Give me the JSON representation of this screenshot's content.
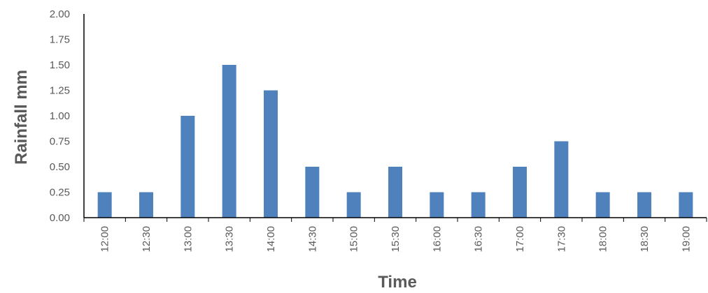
{
  "chart_data": {
    "type": "bar",
    "title": "",
    "xlabel": "Time",
    "ylabel": "Rainfall mm",
    "categories": [
      "12:00",
      "12:30",
      "13:00",
      "13:30",
      "14:00",
      "14:30",
      "15:00",
      "15:30",
      "16:00",
      "16:30",
      "17:00",
      "17:30",
      "18:00",
      "18:30",
      "19:00"
    ],
    "values": [
      0.25,
      0.25,
      1.0,
      1.5,
      1.25,
      0.5,
      0.25,
      0.5,
      0.25,
      0.25,
      0.5,
      0.75,
      0.25,
      0.25,
      0.25
    ],
    "ylim": [
      0,
      2.0
    ],
    "yticks": [
      "0.00",
      "0.25",
      "0.50",
      "0.75",
      "1.00",
      "1.25",
      "1.50",
      "1.75",
      "2.00"
    ],
    "bar_color": "#4f81bd",
    "axis_color": "#000000",
    "grid": false,
    "legend": "none"
  }
}
